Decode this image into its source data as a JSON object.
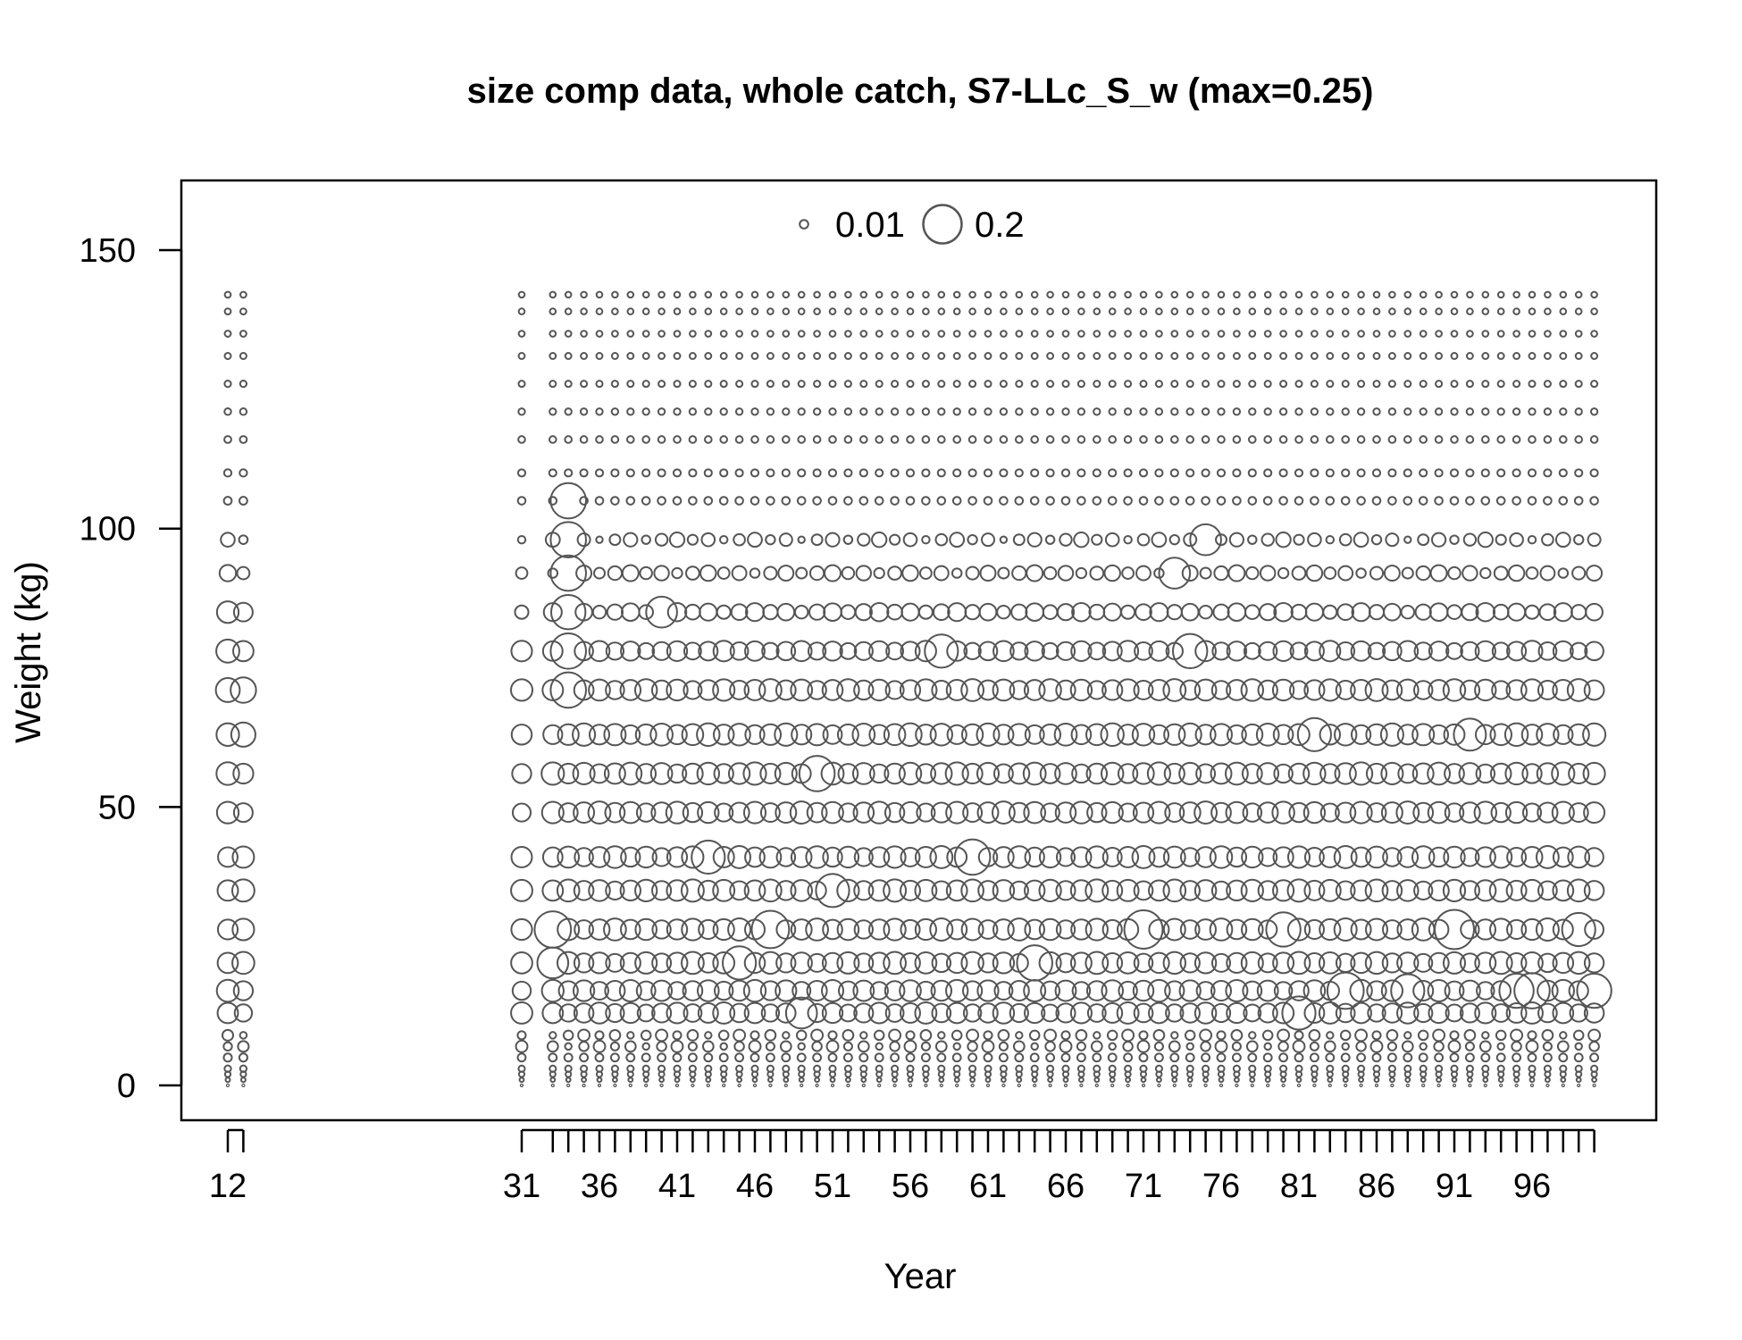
{
  "chart_data": {
    "type": "bubble",
    "title": "size comp data, whole catch, S7-LLc_S_w (max=0.25)",
    "xlabel": "Year",
    "ylabel": "Weight (kg)",
    "x_tick_labels": [
      "12",
      "31",
      "36",
      "41",
      "46",
      "51",
      "56",
      "61",
      "66",
      "71",
      "76",
      "81",
      "86",
      "91",
      "96"
    ],
    "y_tick_labels": [
      "0",
      "50",
      "100",
      "150"
    ],
    "ylim": [
      -6,
      162
    ],
    "legend": {
      "position": "top-center",
      "entries": [
        {
          "label": "0.01",
          "value": 0.01
        },
        {
          "label": "0.2",
          "value": 0.2
        }
      ]
    },
    "max_proportion": 0.25,
    "weight_bins": [
      0,
      1,
      2,
      3,
      5,
      7,
      9,
      13,
      17,
      22,
      28,
      35,
      41,
      49,
      56,
      63,
      71,
      78,
      85,
      92,
      98,
      105,
      110,
      116,
      121,
      126,
      131,
      135,
      139,
      142
    ],
    "first_years": [
      12,
      13,
      31
    ],
    "regular_years_range": [
      33,
      100
    ],
    "notable_observations": [
      {
        "year": 33,
        "weight": 28,
        "value": 0.18
      },
      {
        "year": 33,
        "weight": 22,
        "value": 0.13
      },
      {
        "year": 34,
        "weight": 105,
        "value": 0.17
      },
      {
        "year": 34,
        "weight": 98,
        "value": 0.17
      },
      {
        "year": 34,
        "weight": 92,
        "value": 0.17
      },
      {
        "year": 34,
        "weight": 85,
        "value": 0.16
      },
      {
        "year": 34,
        "weight": 78,
        "value": 0.17
      },
      {
        "year": 34,
        "weight": 71,
        "value": 0.17
      },
      {
        "year": 40,
        "weight": 85,
        "value": 0.13
      },
      {
        "year": 43,
        "weight": 41,
        "value": 0.15
      },
      {
        "year": 45,
        "weight": 22,
        "value": 0.15
      },
      {
        "year": 47,
        "weight": 28,
        "value": 0.19
      },
      {
        "year": 49,
        "weight": 13,
        "value": 0.13
      },
      {
        "year": 50,
        "weight": 56,
        "value": 0.17
      },
      {
        "year": 51,
        "weight": 35,
        "value": 0.15
      },
      {
        "year": 58,
        "weight": 78,
        "value": 0.15
      },
      {
        "year": 60,
        "weight": 41,
        "value": 0.17
      },
      {
        "year": 64,
        "weight": 22,
        "value": 0.17
      },
      {
        "year": 71,
        "weight": 28,
        "value": 0.2
      },
      {
        "year": 73,
        "weight": 92,
        "value": 0.13
      },
      {
        "year": 74,
        "weight": 78,
        "value": 0.16
      },
      {
        "year": 75,
        "weight": 98,
        "value": 0.13
      },
      {
        "year": 80,
        "weight": 28,
        "value": 0.16
      },
      {
        "year": 81,
        "weight": 13,
        "value": 0.15
      },
      {
        "year": 82,
        "weight": 63,
        "value": 0.15
      },
      {
        "year": 84,
        "weight": 17,
        "value": 0.18
      },
      {
        "year": 88,
        "weight": 17,
        "value": 0.15
      },
      {
        "year": 91,
        "weight": 28,
        "value": 0.21
      },
      {
        "year": 92,
        "weight": 63,
        "value": 0.14
      },
      {
        "year": 95,
        "weight": 17,
        "value": 0.16
      },
      {
        "year": 96,
        "weight": 17,
        "value": 0.17
      },
      {
        "year": 99,
        "weight": 28,
        "value": 0.15
      },
      {
        "year": 100,
        "weight": 17,
        "value": 0.16
      }
    ]
  }
}
